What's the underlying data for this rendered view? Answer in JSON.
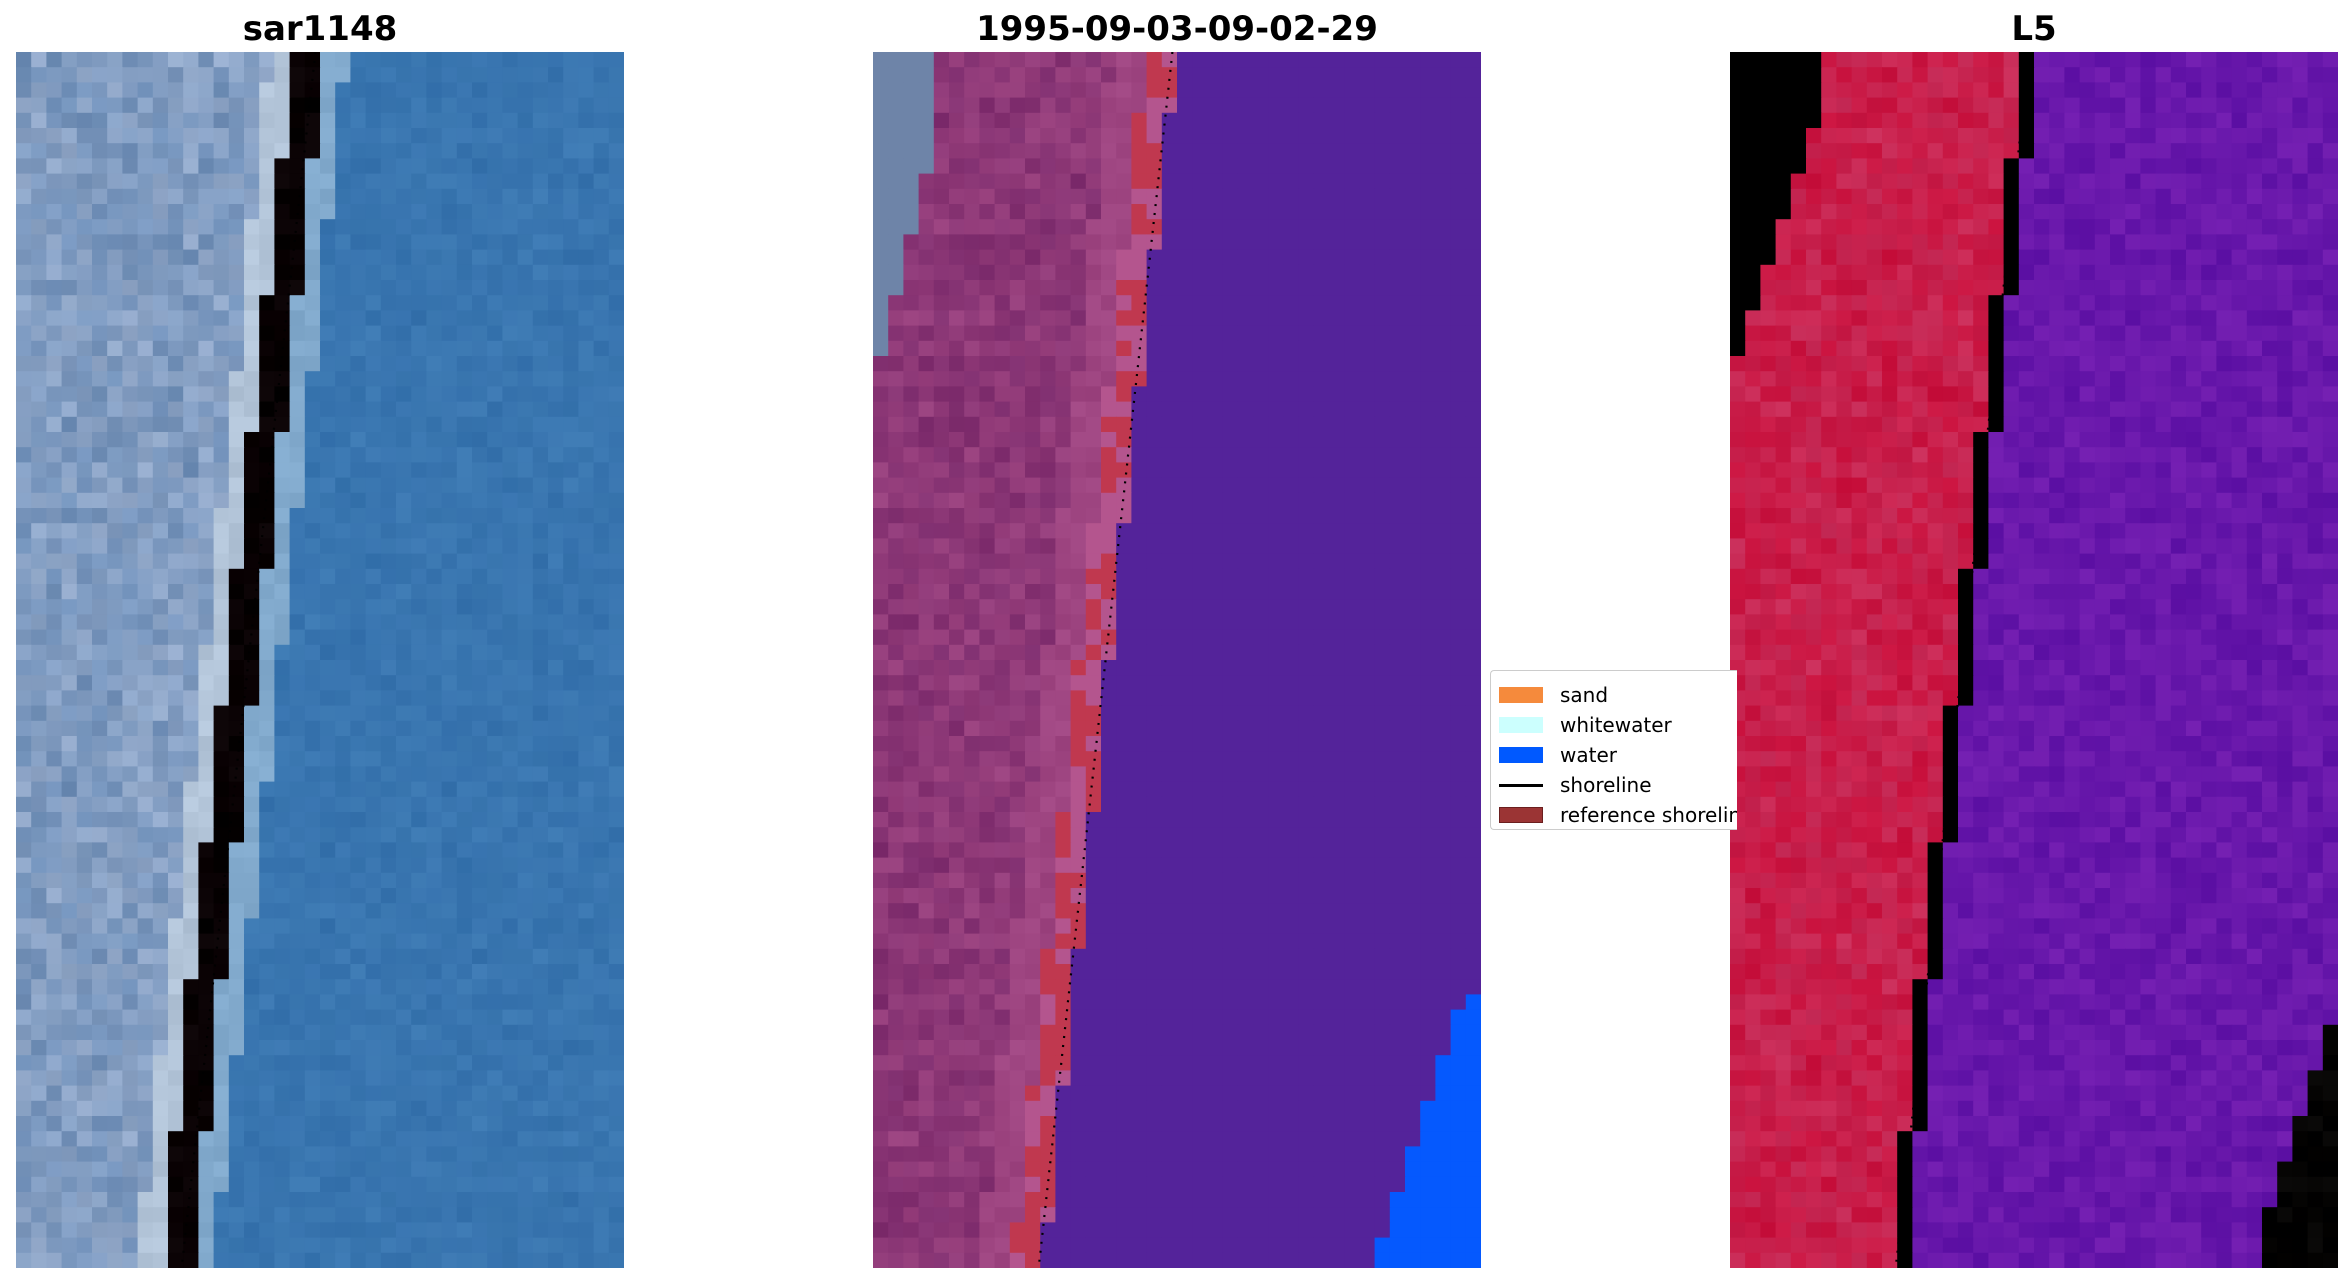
{
  "panels": [
    {
      "title": "sar1148"
    },
    {
      "title": "1995-09-03-09-02-29"
    },
    {
      "title": "L5"
    }
  ],
  "legend": {
    "items": [
      {
        "label": "sand",
        "kind": "patch",
        "color": "#f58a3c"
      },
      {
        "label": "whitewater",
        "kind": "patch",
        "color": "#ccfffe"
      },
      {
        "label": "water",
        "kind": "patch",
        "color": "#0059ff"
      },
      {
        "label": "shoreline",
        "kind": "line",
        "color": "#000000"
      },
      {
        "label": "reference shoreline",
        "kind": "patch",
        "color": "#9b3434"
      }
    ]
  },
  "colors": {
    "sar_land": "#6f8fb8",
    "sar_whitewater": "#e8f0f2",
    "sar_water": "#3c79b2",
    "class_land": "#7e2d6e",
    "class_pink": "#b4558e",
    "class_red": "#c0384f",
    "class_water": "#54239a",
    "class_blue": "#0559fe",
    "mndwi_red": "#c8103c",
    "mndwi_bright": "#ff1a1a",
    "mndwi_purple": "#6014a8"
  }
}
